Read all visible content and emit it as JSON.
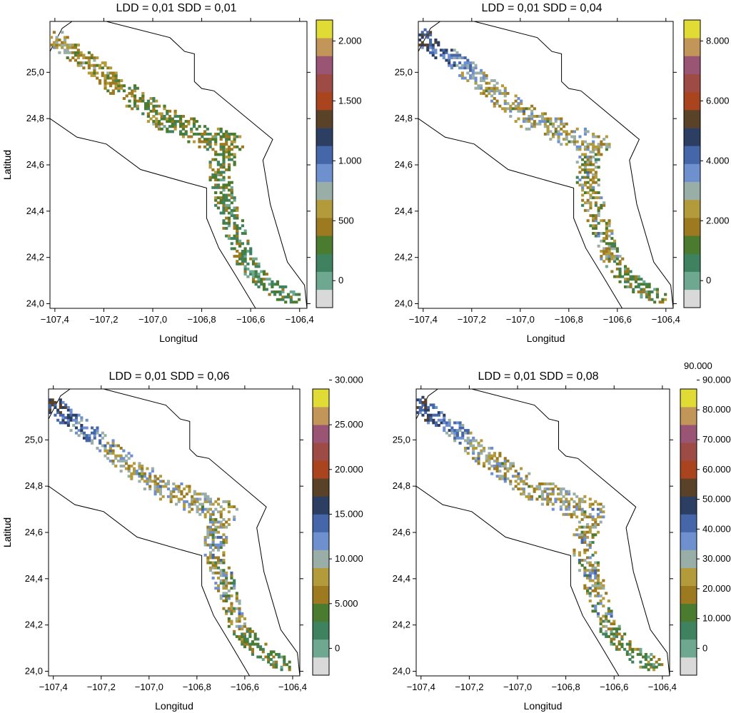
{
  "figure": {
    "extra_label": "90.000",
    "colors": [
      "#d9d9d9",
      "#6ea891",
      "#3f8260",
      "#4b7b2f",
      "#9d7a20",
      "#b39a3a",
      "#9aaea8",
      "#6f90cf",
      "#4566a8",
      "#2c3f62",
      "#5a4228",
      "#a9441f",
      "#9e4a45",
      "#9a5474",
      "#c29559",
      "#e0dc35"
    ]
  },
  "chart_data": [
    {
      "type": "heatmap",
      "title": "LDD = 0,01 SDD = 0,01",
      "xlabel": "Longitud",
      "ylabel": "Latitud",
      "xlim": [
        -107.42,
        -106.37
      ],
      "ylim": [
        23.98,
        25.22
      ],
      "xticks": [
        -107.4,
        -107.2,
        -107.0,
        -106.8,
        -106.6,
        -106.4
      ],
      "xtick_labels": [
        "−107,4",
        "−107,2",
        "−107,0",
        "−106,8",
        "−106,6",
        "−106,4"
      ],
      "yticks": [
        24.0,
        24.2,
        24.4,
        24.6,
        24.8,
        25.0
      ],
      "ytick_labels": [
        "24,0",
        "24,2",
        "24,4",
        "24,6",
        "24,8",
        "25,0"
      ],
      "colorbar": {
        "max": 2250,
        "ticks": [
          0,
          500,
          1000,
          1500,
          2000
        ],
        "tick_labels": [
          "0",
          "500",
          "1.000",
          "1.500",
          "2.000"
        ]
      },
      "spread_scale": 1
    },
    {
      "type": "heatmap",
      "title": "LDD = 0,01 SDD = 0,04",
      "xlabel": "Longitud",
      "ylabel": "Latitud",
      "xlim": [
        -107.42,
        -106.37
      ],
      "ylim": [
        23.98,
        25.22
      ],
      "xticks": [
        -107.4,
        -107.2,
        -107.0,
        -106.8,
        -106.6,
        -106.4
      ],
      "xtick_labels": [
        "−107,4",
        "−107,2",
        "−107,0",
        "−106,8",
        "−106,6",
        "−106,4"
      ],
      "yticks": [
        24.0,
        24.2,
        24.4,
        24.6,
        24.8,
        25.0
      ],
      "ytick_labels": [
        "24,0",
        "24,2",
        "24,4",
        "24,6",
        "24,8",
        "25,0"
      ],
      "colorbar": {
        "max": 9000,
        "ticks": [
          0,
          2000,
          4000,
          6000,
          8000
        ],
        "tick_labels": [
          "0",
          "2.000",
          "4.000",
          "6.000",
          "8.000"
        ]
      },
      "spread_scale": 2
    },
    {
      "type": "heatmap",
      "title": "LDD = 0,01 SDD = 0,06",
      "xlabel": "Longitud",
      "ylabel": "Latitud",
      "xlim": [
        -107.42,
        -106.37
      ],
      "ylim": [
        23.98,
        25.22
      ],
      "xticks": [
        -107.4,
        -107.2,
        -107.0,
        -106.8,
        -106.6,
        -106.4
      ],
      "xtick_labels": [
        "−107,4",
        "−107,2",
        "−107,0",
        "−106,8",
        "−106,6",
        "−106,4"
      ],
      "yticks": [
        24.0,
        24.2,
        24.4,
        24.6,
        24.8,
        25.0
      ],
      "ytick_labels": [
        "24,0",
        "24,2",
        "24,4",
        "24,6",
        "24,8",
        "25,0"
      ],
      "colorbar": {
        "max": 30000,
        "ticks": [
          0,
          5000,
          10000,
          15000,
          20000,
          25000,
          30000
        ],
        "tick_labels": [
          "0",
          "5.000",
          "10.000",
          "15.000",
          "20.000",
          "25.000",
          "30.000"
        ]
      },
      "spread_scale": 2.5
    },
    {
      "type": "heatmap",
      "title": "LDD = 0,01 SDD = 0,08",
      "xlabel": "Longitud",
      "ylabel": "Latitud",
      "xlim": [
        -107.42,
        -106.37
      ],
      "ylim": [
        23.98,
        25.22
      ],
      "xticks": [
        -107.4,
        -107.2,
        -107.0,
        -106.8,
        -106.6,
        -106.4
      ],
      "xtick_labels": [
        "−107,4",
        "−107,2",
        "−107,0",
        "−106,8",
        "−106,6",
        "−106,4"
      ],
      "yticks": [
        24.0,
        24.2,
        24.4,
        24.6,
        24.8,
        25.0
      ],
      "ytick_labels": [
        "24,0",
        "24,2",
        "24,4",
        "24,6",
        "24,8",
        "25,0"
      ],
      "colorbar": {
        "max": 90000,
        "ticks": [
          0,
          10000,
          20000,
          30000,
          40000,
          50000,
          60000,
          70000,
          80000,
          90000
        ],
        "tick_labels": [
          "0",
          "10.000",
          "20.000",
          "30.000",
          "40.000",
          "50.000",
          "60.000",
          "70.000",
          "80.000",
          "90.000"
        ]
      },
      "spread_scale": 3
    }
  ]
}
